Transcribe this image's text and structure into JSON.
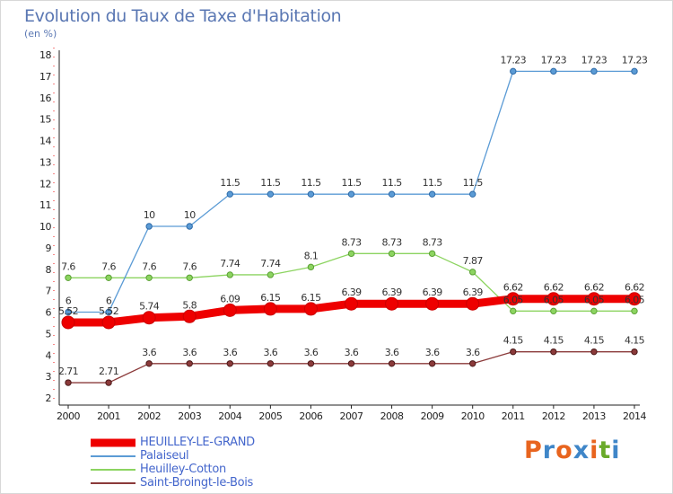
{
  "title": "Evolution du Taux de Taxe d'Habitation",
  "subtitle": "(en %)",
  "brand": {
    "text": "Proxiti",
    "letter_colors": [
      "#e8641e",
      "#3f86c8",
      "#e8641e",
      "#3f86c8",
      "#e8641e",
      "#6aaa2a",
      "#3f86c8"
    ]
  },
  "chart_data": {
    "type": "line",
    "title": "Evolution du Taux de Taxe d'Habitation",
    "subtitle": "(en %)",
    "xlabel": "",
    "ylabel": "",
    "x": [
      "2000",
      "2001",
      "2002",
      "2003",
      "2004",
      "2005",
      "2006",
      "2007",
      "2008",
      "2009",
      "2010",
      "2011",
      "2012",
      "2013",
      "2014"
    ],
    "ylim": [
      2,
      18
    ],
    "yticks": [
      "2",
      "3",
      "4",
      "5",
      "6",
      "7",
      "8",
      "9",
      "10",
      "11",
      "12",
      "13",
      "14",
      "15",
      "16",
      "17",
      "18"
    ],
    "grid": false,
    "legend_position": "bottom-left",
    "series": [
      {
        "name": "HEUILLEY-LE-GRAND",
        "color": "#ee0000",
        "values": [
          5.52,
          5.52,
          5.74,
          5.8,
          6.09,
          6.15,
          6.15,
          6.39,
          6.39,
          6.39,
          6.39,
          6.62,
          6.62,
          6.62,
          6.62
        ],
        "labels": [
          "5.52",
          "5.52",
          "5.74",
          "5.8",
          "6.09",
          "6.15",
          "6.15",
          "6.39",
          "6.39",
          "6.39",
          "6.39",
          "6.62",
          "6.62",
          "6.62",
          "6.62"
        ]
      },
      {
        "name": "Palaiseul",
        "color": "#5b9bd5",
        "values": [
          6,
          6,
          10,
          10,
          11.5,
          11.5,
          11.5,
          11.5,
          11.5,
          11.5,
          11.5,
          17.23,
          17.23,
          17.23,
          17.23
        ],
        "labels": [
          "6",
          "6",
          "10",
          "10",
          "11.5",
          "11.5",
          "11.5",
          "11.5",
          "11.5",
          "11.5",
          "11.5",
          "17.23",
          "17.23",
          "17.23",
          "17.23"
        ]
      },
      {
        "name": "Heuilley-Cotton",
        "color": "#8cd460",
        "values": [
          7.6,
          7.6,
          7.6,
          7.6,
          7.74,
          7.74,
          8.1,
          8.73,
          8.73,
          8.73,
          7.87,
          6.05,
          6.05,
          6.05,
          6.05
        ],
        "labels": [
          "7.6",
          "7.6",
          "7.6",
          "7.6",
          "7.74",
          "7.74",
          "8.1",
          "8.73",
          "8.73",
          "8.73",
          "7.87",
          "6.05",
          "6.05",
          "6.05",
          "6.05"
        ]
      },
      {
        "name": "Saint-Broingt-le-Bois",
        "color": "#8b3a3a",
        "values": [
          2.71,
          2.71,
          3.6,
          3.6,
          3.6,
          3.6,
          3.6,
          3.6,
          3.6,
          3.6,
          3.6,
          4.15,
          4.15,
          4.15,
          4.15
        ],
        "labels": [
          "2.71",
          "2.71",
          "3.6",
          "3.6",
          "3.6",
          "3.6",
          "3.6",
          "3.6",
          "3.6",
          "3.6",
          "3.6",
          "4.15",
          "4.15",
          "4.15",
          "4.15"
        ]
      }
    ]
  }
}
